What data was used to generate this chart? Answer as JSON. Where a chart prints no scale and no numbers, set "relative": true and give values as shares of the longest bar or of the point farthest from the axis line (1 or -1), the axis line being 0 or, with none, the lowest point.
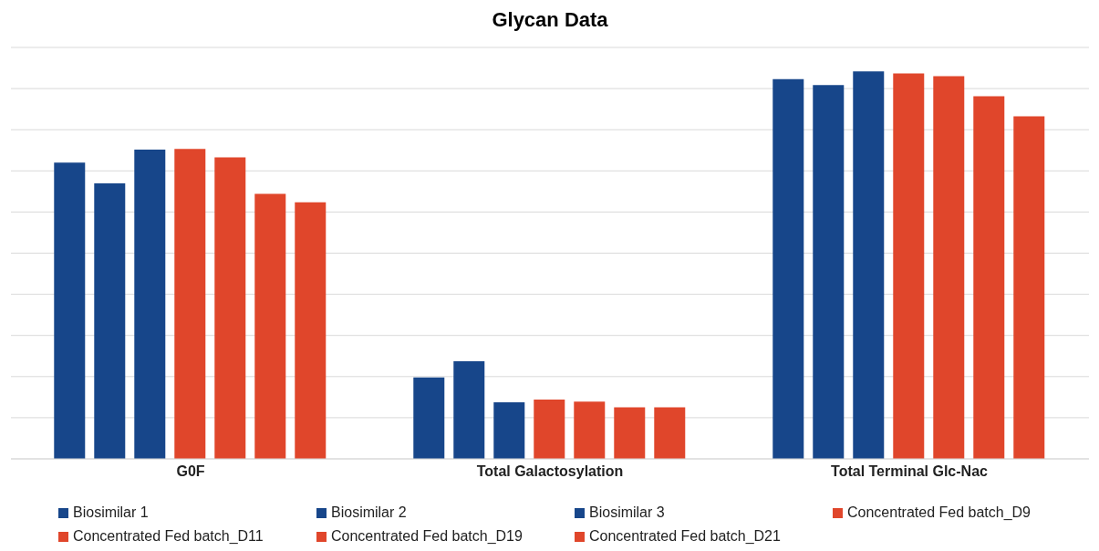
{
  "chart_data": {
    "type": "bar",
    "title": "Glycan Data",
    "relative": true,
    "grid": "y",
    "legend": "bottom",
    "categories": [
      "G0F",
      "Total Galactosylation",
      "Total Terminal Glc-Nac"
    ],
    "series": [
      {
        "name": "Biosimilar 1",
        "color": "#17468a",
        "values": [
          0.765,
          0.21,
          0.98
        ]
      },
      {
        "name": "Biosimilar 2",
        "color": "#17468a",
        "values": [
          0.711,
          0.252,
          0.965
        ]
      },
      {
        "name": "Biosimilar 3",
        "color": "#17468a",
        "values": [
          0.798,
          0.146,
          1
        ]
      },
      {
        "name": "Concentrated Fed batch_D9",
        "color": "#e0462b",
        "values": [
          0.8,
          0.153,
          0.995
        ]
      },
      {
        "name": "Concentrated Fed batch_D11",
        "color": "#e0462b",
        "values": [
          0.778,
          0.148,
          0.988
        ]
      },
      {
        "name": "Concentrated Fed batch_D19",
        "color": "#e0462b",
        "values": [
          0.684,
          0.133,
          0.936
        ]
      },
      {
        "name": "Concentrated Fed batch_D21",
        "color": "#e0462b",
        "values": [
          0.662,
          0.133,
          0.884
        ]
      }
    ]
  }
}
